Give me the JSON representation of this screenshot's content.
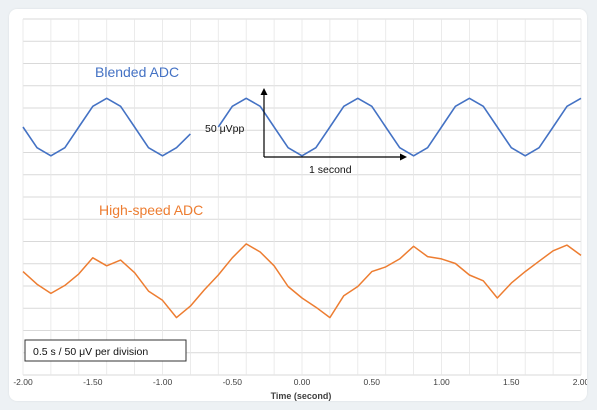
{
  "chart_data": {
    "type": "line",
    "xlabel": "Time (second)",
    "xlim": [
      -2.0,
      2.0
    ],
    "xticks": [
      "-2.00",
      "-1.50",
      "-1.00",
      "-0.50",
      "0.00",
      "0.50",
      "1.00",
      "1.50",
      "2.00"
    ],
    "grid": true,
    "series": [
      {
        "name": "Blended ADC",
        "color": "#4472c4",
        "x": [
          -2.0,
          -1.9,
          -1.8,
          -1.7,
          -1.6,
          -1.5,
          -1.4,
          -1.3,
          -1.2,
          -1.1,
          -1.0,
          -0.9,
          -0.8,
          -0.7,
          -0.6,
          -0.5,
          -0.4,
          -0.3,
          -0.2,
          -0.1,
          0.0,
          0.1,
          0.2,
          0.3,
          0.4,
          0.5,
          0.6,
          0.7,
          0.8,
          0.9,
          1.0,
          1.1,
          1.2,
          1.3,
          1.4,
          1.5,
          1.6,
          1.7,
          1.8,
          1.9,
          2.0
        ],
        "y": [
          0,
          -18,
          -25,
          -18,
          0,
          18,
          25,
          18,
          0,
          -18,
          -25,
          -18,
          -6,
          null,
          0,
          18,
          25,
          18,
          0,
          -18,
          -25,
          -18,
          0,
          18,
          25,
          18,
          0,
          -18,
          -25,
          -18,
          0,
          18,
          25,
          18,
          0,
          -18,
          -25,
          -18,
          0,
          18,
          25
        ]
      },
      {
        "name": "High-speed ADC",
        "color": "#ed7d31",
        "x": [
          -2.0,
          -1.9,
          -1.8,
          -1.7,
          -1.6,
          -1.5,
          -1.4,
          -1.3,
          -1.2,
          -1.1,
          -1.0,
          -0.9,
          -0.8,
          -0.7,
          -0.6,
          -0.5,
          -0.4,
          -0.3,
          -0.2,
          -0.1,
          0.0,
          0.1,
          0.2,
          0.3,
          0.4,
          0.5,
          0.6,
          0.7,
          0.8,
          0.9,
          1.0,
          1.1,
          1.2,
          1.3,
          1.4,
          1.5,
          1.6,
          1.7,
          1.8,
          1.9,
          2.0
        ],
        "y": [
          3,
          -8,
          -16,
          -9,
          1,
          15,
          8,
          13,
          2,
          -14,
          -22,
          -37,
          -27,
          -13,
          0,
          15,
          27,
          20,
          8,
          -10,
          -20,
          -28,
          -37,
          -18,
          -10,
          3,
          7,
          14,
          25,
          16,
          14,
          10,
          0,
          -5,
          -20,
          -7,
          3,
          12,
          21,
          26,
          17
        ]
      }
    ],
    "annotations": {
      "amplitude": "50 μVpp",
      "period": "1 second",
      "scale": "0.5 s / 50 μV per division"
    }
  }
}
